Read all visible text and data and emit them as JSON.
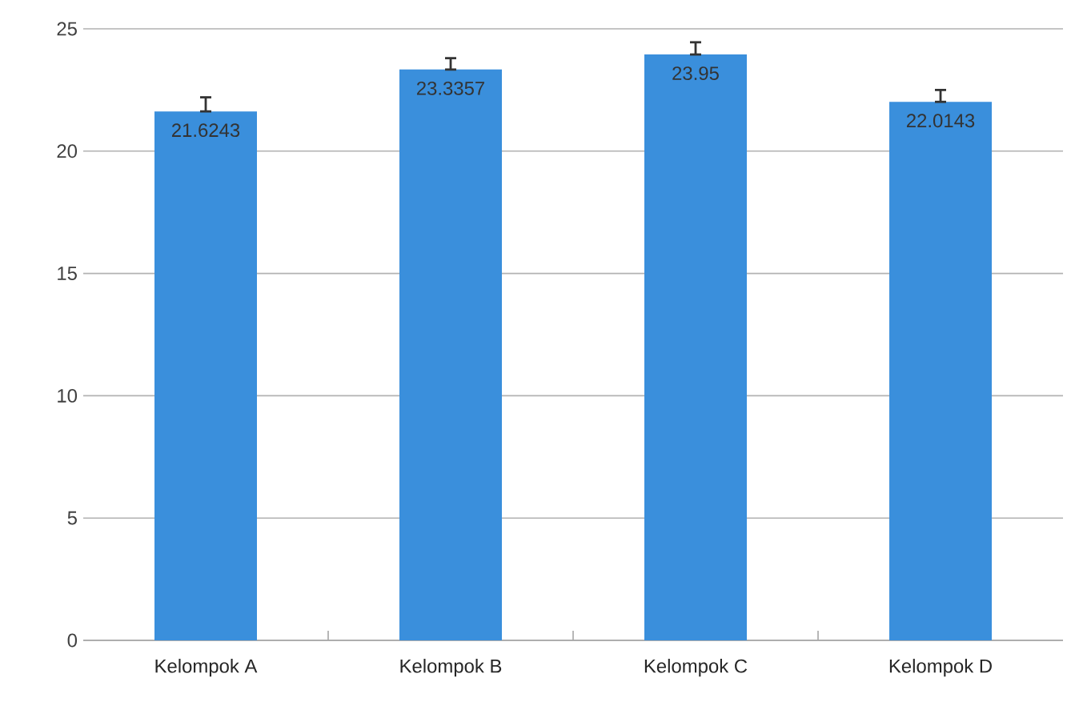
{
  "chart_data": {
    "type": "bar",
    "categories": [
      "Kelompok A",
      "Kelompok B",
      "Kelompok C",
      "Kelompok D"
    ],
    "values": [
      21.6243,
      23.3357,
      23.95,
      22.0143
    ],
    "value_labels": [
      "21.6243",
      "23.3357",
      "23.95",
      "22.0143"
    ],
    "errors": [
      [
        21.6243,
        22.2
      ],
      [
        23.3357,
        23.8
      ],
      [
        23.95,
        24.45
      ],
      [
        22.0143,
        22.5
      ]
    ],
    "color": "#3a8fdc",
    "ylim": [
      0,
      25
    ],
    "yticks": [
      0,
      5,
      10,
      15,
      20,
      25
    ],
    "grid": "y"
  }
}
